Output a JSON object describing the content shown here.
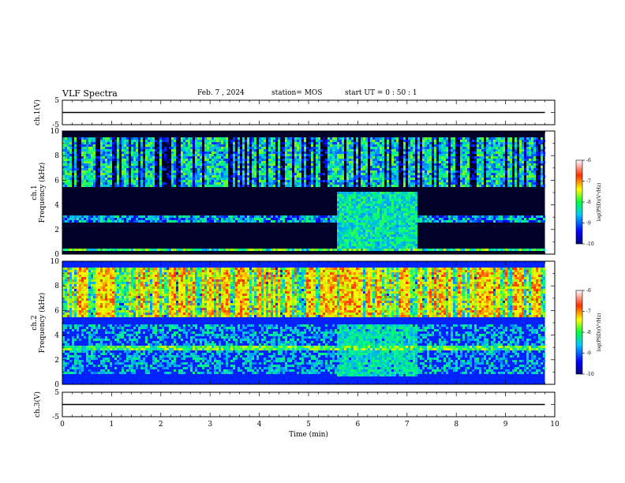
{
  "header": {
    "title": "VLF Spectra",
    "date": "Feb. 7 , 2024",
    "station": "station= MOS",
    "start": "start  UT =   0  : 50 : 1"
  },
  "chart_data": [
    {
      "type": "line",
      "panel": "ch1-waveform",
      "ylabel": "ch.1(V)",
      "ylim": [
        -5,
        5
      ],
      "yticks": [
        -5,
        5
      ],
      "xlim": [
        0,
        10
      ],
      "series": [
        {
          "values_description": "flat",
          "x": [
            0,
            9.8
          ],
          "y": [
            0,
            0
          ]
        }
      ]
    },
    {
      "type": "heatmap",
      "panel": "ch1-spectrogram",
      "ylabel": "ch.1 Frequency (kHz)",
      "ylim": [
        0,
        10
      ],
      "yticks": [
        0,
        2,
        4,
        6,
        8,
        10
      ],
      "xlim": [
        0,
        10
      ],
      "data_end_min": 9.8,
      "colorbar": {
        "label": "log(PSD)(V²/Hz)",
        "range": [
          -10,
          -6
        ],
        "ticks": [
          -6,
          -7,
          -8,
          -9,
          -10
        ]
      },
      "background_log_psd": -10,
      "bands": [
        {
          "freq_range_khz": [
            5.5,
            9.6
          ],
          "log_psd": -8.6,
          "note": "bursts"
        },
        {
          "freq_range_khz": [
            2.7,
            3.3
          ],
          "log_psd": -8.9
        },
        {
          "freq_range_khz": [
            0.3,
            0.5
          ],
          "log_psd": -8.3
        }
      ],
      "events": [
        {
          "time_range_min": [
            5.55,
            7.2
          ],
          "freq_range_khz": [
            0.5,
            5.2
          ],
          "log_psd": -8.7
        }
      ]
    },
    {
      "type": "heatmap",
      "panel": "ch2-spectrogram",
      "ylabel": "ch.2 Frequency (kHz)",
      "ylim": [
        0,
        10
      ],
      "yticks": [
        0,
        2,
        4,
        6,
        8,
        10
      ],
      "xlim": [
        0,
        10
      ],
      "data_end_min": 9.8,
      "colorbar": {
        "label": "log(PSD)(V²/Hz)",
        "range": [
          -10,
          -6
        ],
        "ticks": [
          -6,
          -7,
          -8,
          -9,
          -10
        ]
      },
      "background_log_psd": -9.4,
      "bands": [
        {
          "freq_range_khz": [
            5.5,
            9.5
          ],
          "log_psd": -7.2,
          "note": "strong bursts peaking near 7 kHz"
        },
        {
          "freq_range_khz": [
            2.8,
            3.3
          ],
          "log_psd": -8.2
        },
        {
          "freq_range_khz": [
            1.0,
            5.0
          ],
          "log_psd": -9.0
        }
      ],
      "events": [
        {
          "time_range_min": [
            5.55,
            7.2
          ],
          "freq_range_khz": [
            0.8,
            5.0
          ],
          "log_psd": -8.8
        }
      ]
    },
    {
      "type": "line",
      "panel": "ch3-waveform",
      "ylabel": "ch.3(V)",
      "ylim": [
        -5,
        5
      ],
      "yticks": [
        -5,
        5
      ],
      "xlim": [
        0,
        10
      ],
      "xlabel": "Time  (min)",
      "xticks": [
        0,
        1,
        2,
        3,
        4,
        5,
        6,
        7,
        8,
        9,
        10
      ],
      "series": [
        {
          "values_description": "flat",
          "x": [
            0,
            9.8
          ],
          "y": [
            0,
            0
          ]
        }
      ]
    }
  ]
}
